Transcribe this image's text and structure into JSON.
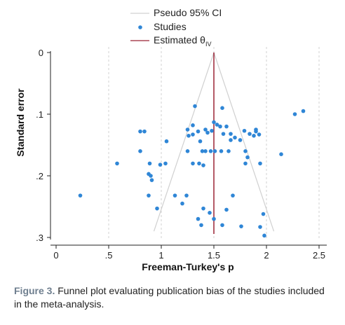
{
  "chart_data": {
    "type": "scatter",
    "xlabel": "Freeman-Turkey's p",
    "ylabel": "Standard error",
    "xlim": [
      -0.05,
      2.55
    ],
    "ylim": [
      0,
      0.3
    ],
    "y_reversed": true,
    "x_ticks": [
      {
        "value": 0,
        "label": "0"
      },
      {
        "value": 0.5,
        "label": ".5"
      },
      {
        "value": 1,
        "label": "1"
      },
      {
        "value": 1.5,
        "label": "1.5"
      },
      {
        "value": 2,
        "label": "2"
      },
      {
        "value": 2.5,
        "label": "2.5"
      }
    ],
    "y_ticks": [
      {
        "value": 0,
        "label": "0"
      },
      {
        "value": 0.1,
        "label": ".1"
      },
      {
        "value": 0.2,
        "label": ".2"
      },
      {
        "value": 0.3,
        "label": ".3"
      }
    ],
    "x_gridlines": [
      0.5,
      1,
      1.5,
      2,
      2.5
    ],
    "legend": {
      "placement": "top-center",
      "entries": [
        {
          "label": "Pseudo 95% CI",
          "kind": "line",
          "color": "#d0d0d0"
        },
        {
          "label": "Studies",
          "kind": "marker",
          "color": "#2f86d6"
        },
        {
          "label": "Estimated θ",
          "subscript": "IV",
          "kind": "line",
          "color": "#9b2335"
        }
      ]
    },
    "estimate": 1.5,
    "pseudo_ci": {
      "apex": [
        1.5,
        0
      ],
      "left_bottom": [
        0.93,
        0.29
      ],
      "right_bottom": [
        2.07,
        0.29
      ]
    },
    "colors": {
      "studies": "#2f86d6",
      "estimate": "#9b2335",
      "ci": "#d0d0d0",
      "grid": "#d0d0d0"
    },
    "series": [
      {
        "name": "Studies",
        "points": [
          [
            2.35,
            0.095
          ],
          [
            2.27,
            0.1
          ],
          [
            1.32,
            0.087
          ],
          [
            1.58,
            0.09
          ],
          [
            1.25,
            0.125
          ],
          [
            1.3,
            0.118
          ],
          [
            1.35,
            0.128
          ],
          [
            1.42,
            0.125
          ],
          [
            1.5,
            0.113
          ],
          [
            1.53,
            0.117
          ],
          [
            1.56,
            0.12
          ],
          [
            1.62,
            0.12
          ],
          [
            1.66,
            0.132
          ],
          [
            1.79,
            0.127
          ],
          [
            1.9,
            0.128
          ],
          [
            1.9,
            0.125
          ],
          [
            0.8,
            0.128
          ],
          [
            0.84,
            0.128
          ],
          [
            1.05,
            0.144
          ],
          [
            1.26,
            0.135
          ],
          [
            1.3,
            0.133
          ],
          [
            1.37,
            0.144
          ],
          [
            1.44,
            0.13
          ],
          [
            1.48,
            0.127
          ],
          [
            1.59,
            0.132
          ],
          [
            1.66,
            0.142
          ],
          [
            1.7,
            0.138
          ],
          [
            1.75,
            0.142
          ],
          [
            1.84,
            0.132
          ],
          [
            1.88,
            0.135
          ],
          [
            1.93,
            0.133
          ],
          [
            1.25,
            0.16
          ],
          [
            1.39,
            0.16
          ],
          [
            1.42,
            0.16
          ],
          [
            1.47,
            0.16
          ],
          [
            1.51,
            0.16
          ],
          [
            1.57,
            0.16
          ],
          [
            1.64,
            0.16
          ],
          [
            1.8,
            0.16
          ],
          [
            2.14,
            0.165
          ],
          [
            0.8,
            0.16
          ],
          [
            0.58,
            0.18
          ],
          [
            0.89,
            0.18
          ],
          [
            0.99,
            0.182
          ],
          [
            1.04,
            0.18
          ],
          [
            1.3,
            0.18
          ],
          [
            1.36,
            0.18
          ],
          [
            1.4,
            0.183
          ],
          [
            1.8,
            0.18
          ],
          [
            1.94,
            0.18
          ],
          [
            0.88,
            0.197
          ],
          [
            0.9,
            0.2
          ],
          [
            0.91,
            0.207
          ],
          [
            1.82,
            0.17
          ],
          [
            0.23,
            0.232
          ],
          [
            0.88,
            0.232
          ],
          [
            1.13,
            0.232
          ],
          [
            1.24,
            0.232
          ],
          [
            1.68,
            0.232
          ],
          [
            1.2,
            0.245
          ],
          [
            0.96,
            0.253
          ],
          [
            1.4,
            0.253
          ],
          [
            1.46,
            0.26
          ],
          [
            1.62,
            0.255
          ],
          [
            1.97,
            0.262
          ],
          [
            1.35,
            0.27
          ],
          [
            1.38,
            0.28
          ],
          [
            1.5,
            0.27
          ],
          [
            1.58,
            0.28
          ],
          [
            1.94,
            0.283
          ],
          [
            1.76,
            0.282
          ],
          [
            1.98,
            0.297
          ]
        ]
      }
    ]
  },
  "caption": {
    "label": "Figure 3.",
    "text": " Funnel plot evaluating publication bias of the studies included in the meta-analysis."
  }
}
